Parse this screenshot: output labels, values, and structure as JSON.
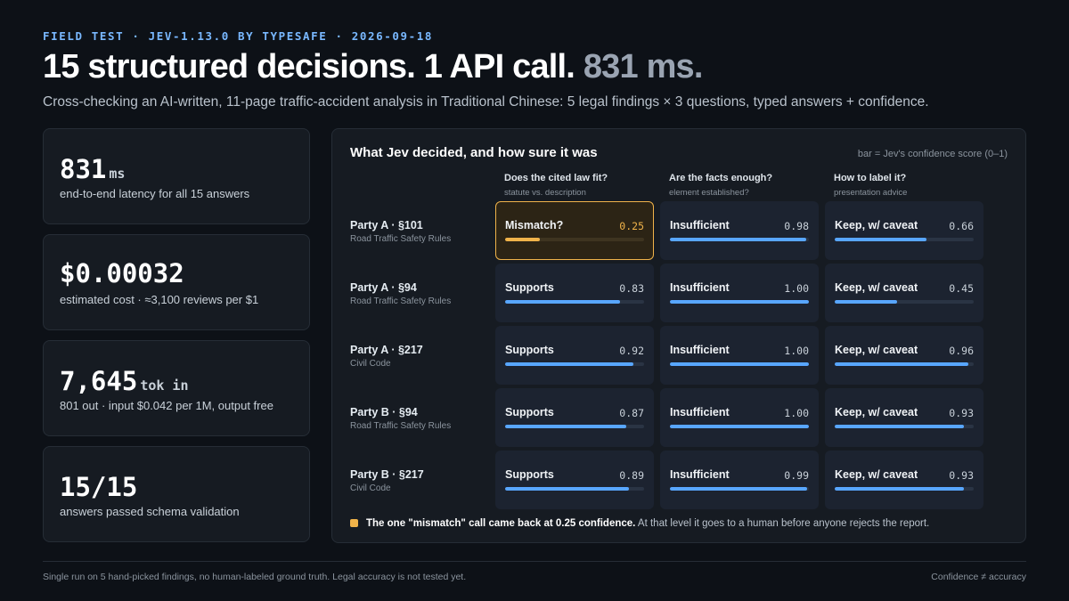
{
  "eyebrow": "FIELD TEST · JEV-1.13.0 BY TYPESAFE · 2026-09-18",
  "headline": {
    "main": "15 structured decisions. 1 API call.",
    "muted": "831 ms."
  },
  "subline": "Cross-checking an AI-written, 11-page traffic-accident analysis in Traditional Chinese: 5 legal findings × 3 questions, typed answers + confidence.",
  "stats": [
    {
      "value": "831",
      "unit": "ms",
      "label": "end-to-end latency for all 15 answers"
    },
    {
      "value": "$0.00032",
      "unit": "",
      "label": "estimated cost · ≈3,100 reviews per $1"
    },
    {
      "value": "7,645",
      "unit": "tok in",
      "label": "801 out · input $0.042 per 1M, output free"
    },
    {
      "value": "15/15",
      "unit": "",
      "label": "answers passed schema validation"
    }
  ],
  "panel": {
    "title": "What Jev decided, and how sure it was",
    "hint": "bar = Jev's confidence score (0–1)",
    "columns": [
      {
        "question": "Does the cited law fit?",
        "sub": "statute vs. description"
      },
      {
        "question": "Are the facts enough?",
        "sub": "element established?"
      },
      {
        "question": "How to label it?",
        "sub": "presentation advice"
      }
    ],
    "rows": [
      {
        "title": "Party A · §101",
        "source": "Road Traffic Safety Rules",
        "cells": [
          {
            "answer": "Mismatch?",
            "confidence": "0.25",
            "flag": true
          },
          {
            "answer": "Insufficient",
            "confidence": "0.98"
          },
          {
            "answer": "Keep, w/ caveat",
            "confidence": "0.66"
          }
        ]
      },
      {
        "title": "Party A · §94",
        "source": "Road Traffic Safety Rules",
        "cells": [
          {
            "answer": "Supports",
            "confidence": "0.83"
          },
          {
            "answer": "Insufficient",
            "confidence": "1.00"
          },
          {
            "answer": "Keep, w/ caveat",
            "confidence": "0.45"
          }
        ]
      },
      {
        "title": "Party A · §217",
        "source": "Civil Code",
        "cells": [
          {
            "answer": "Supports",
            "confidence": "0.92"
          },
          {
            "answer": "Insufficient",
            "confidence": "1.00"
          },
          {
            "answer": "Keep, w/ caveat",
            "confidence": "0.96"
          }
        ]
      },
      {
        "title": "Party B · §94",
        "source": "Road Traffic Safety Rules",
        "cells": [
          {
            "answer": "Supports",
            "confidence": "0.87"
          },
          {
            "answer": "Insufficient",
            "confidence": "1.00"
          },
          {
            "answer": "Keep, w/ caveat",
            "confidence": "0.93"
          }
        ]
      },
      {
        "title": "Party B · §217",
        "source": "Civil Code",
        "cells": [
          {
            "answer": "Supports",
            "confidence": "0.89"
          },
          {
            "answer": "Insufficient",
            "confidence": "0.99"
          },
          {
            "answer": "Keep, w/ caveat",
            "confidence": "0.93"
          }
        ]
      }
    ],
    "note": {
      "bold": "The one \"mismatch\" call came back at 0.25 confidence.",
      "rest": " At that level it goes to a human before anyone rejects the report."
    }
  },
  "footer": {
    "left": "Single run on 5 hand-picked findings, no human-labeled ground truth. Legal accuracy is not tested yet.",
    "right": "Confidence ≠ accuracy"
  },
  "colors": {
    "background": "#0d1117",
    "card": "#161b22",
    "bar": "#58a6ff",
    "flag": "#f0b34a",
    "eyebrow": "#79b8ff"
  }
}
